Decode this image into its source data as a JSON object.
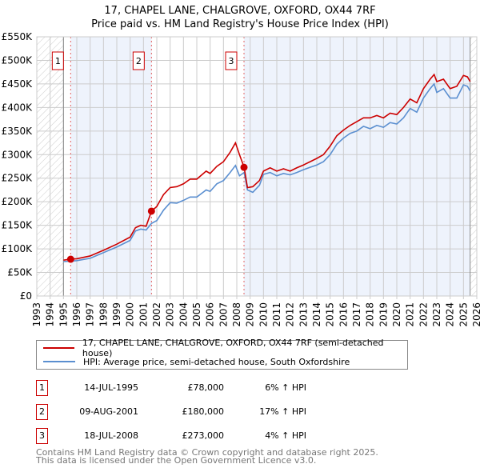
{
  "title": "17, CHAPEL LANE, CHALGROVE, OXFORD, OX44 7RF",
  "subtitle": "Price paid vs. HM Land Registry's House Price Index (HPI)",
  "chart_data": {
    "type": "line",
    "xlim": [
      1993,
      2026
    ],
    "ylim": [
      0,
      550000
    ],
    "yticks": [
      {
        "v": 0,
        "l": "£0"
      },
      {
        "v": 50000,
        "l": "£50K"
      },
      {
        "v": 100000,
        "l": "£100K"
      },
      {
        "v": 150000,
        "l": "£150K"
      },
      {
        "v": 200000,
        "l": "£200K"
      },
      {
        "v": 250000,
        "l": "£250K"
      },
      {
        "v": 300000,
        "l": "£300K"
      },
      {
        "v": 350000,
        "l": "£350K"
      },
      {
        "v": 400000,
        "l": "£400K"
      },
      {
        "v": 450000,
        "l": "£450K"
      },
      {
        "v": 500000,
        "l": "£500K"
      },
      {
        "v": 550000,
        "l": "£550K"
      }
    ],
    "xticks": [
      "1993",
      "1994",
      "1995",
      "1996",
      "1997",
      "1998",
      "1999",
      "2000",
      "2001",
      "2002",
      "2003",
      "2004",
      "2005",
      "2006",
      "2007",
      "2008",
      "2009",
      "2010",
      "2011",
      "2012",
      "2013",
      "2014",
      "2015",
      "2016",
      "2017",
      "2018",
      "2019",
      "2020",
      "2021",
      "2022",
      "2023",
      "2024",
      "2025",
      "2026"
    ],
    "data_start": 1995.0,
    "data_end": 2025.5,
    "series": [
      {
        "name": "17, CHAPEL LANE, CHALGROVE, OXFORD, OX44 7RF (semi-detached house)",
        "color": "#cc0000",
        "x": [
          1995.0,
          1995.5,
          1996,
          1997,
          1998,
          1999,
          2000,
          2000.4,
          2000.8,
          2001.2,
          2001.6,
          2002,
          2002.5,
          2003,
          2003.5,
          2004,
          2004.5,
          2005,
          2005.7,
          2006,
          2006.5,
          2007,
          2007.5,
          2007.9,
          2008.2,
          2008.55,
          2008.8,
          2009.2,
          2009.7,
          2010,
          2010.5,
          2011,
          2011.5,
          2012,
          2012.5,
          2013,
          2013.5,
          2014,
          2014.5,
          2015,
          2015.5,
          2016,
          2016.5,
          2017,
          2017.5,
          2018,
          2018.5,
          2019,
          2019.5,
          2020,
          2020.5,
          2021,
          2021.5,
          2022,
          2022.5,
          2022.8,
          2023,
          2023.5,
          2024,
          2024.5,
          2025,
          2025.3,
          2025.5
        ],
        "y": [
          76000,
          78000,
          79000,
          85000,
          97000,
          110000,
          125000,
          145000,
          150000,
          148000,
          180000,
          190000,
          215000,
          230000,
          232000,
          238000,
          248000,
          248000,
          265000,
          260000,
          275000,
          285000,
          305000,
          325000,
          300000,
          273000,
          230000,
          232000,
          245000,
          265000,
          272000,
          265000,
          270000,
          265000,
          272000,
          278000,
          285000,
          292000,
          300000,
          318000,
          340000,
          352000,
          362000,
          370000,
          378000,
          378000,
          383000,
          378000,
          388000,
          385000,
          400000,
          418000,
          410000,
          440000,
          460000,
          470000,
          455000,
          460000,
          440000,
          445000,
          468000,
          465000,
          455000
        ]
      },
      {
        "name": "HPI: Average price, semi-detached house, South Oxfordshire",
        "color": "#5b8fd0",
        "x": [
          1995.0,
          1995.5,
          1996,
          1997,
          1998,
          1999,
          2000,
          2000.4,
          2000.8,
          2001.2,
          2001.6,
          2002,
          2002.5,
          2003,
          2003.5,
          2004,
          2004.5,
          2005,
          2005.7,
          2006,
          2006.5,
          2007,
          2007.5,
          2007.9,
          2008.2,
          2008.55,
          2008.8,
          2009.2,
          2009.7,
          2010,
          2010.5,
          2011,
          2011.5,
          2012,
          2012.5,
          2013,
          2013.5,
          2014,
          2014.5,
          2015,
          2015.5,
          2016,
          2016.5,
          2017,
          2017.5,
          2018,
          2018.5,
          2019,
          2019.5,
          2020,
          2020.5,
          2021,
          2021.5,
          2022,
          2022.5,
          2022.8,
          2023,
          2023.5,
          2024,
          2024.5,
          2025,
          2025.3,
          2025.5
        ],
        "y": [
          73000,
          74000,
          75000,
          80000,
          92000,
          104000,
          118000,
          138000,
          142000,
          140000,
          154000,
          160000,
          182000,
          198000,
          197000,
          203000,
          210000,
          210000,
          225000,
          222000,
          238000,
          245000,
          262000,
          277000,
          255000,
          262000,
          225000,
          220000,
          235000,
          258000,
          262000,
          255000,
          260000,
          257000,
          262000,
          268000,
          273000,
          278000,
          285000,
          300000,
          322000,
          335000,
          345000,
          350000,
          360000,
          355000,
          362000,
          358000,
          368000,
          365000,
          378000,
          398000,
          390000,
          420000,
          440000,
          450000,
          432000,
          440000,
          420000,
          420000,
          448000,
          445000,
          435000
        ]
      }
    ],
    "sales": [
      {
        "label": "1",
        "x": 1995.54,
        "y": 78000
      },
      {
        "label": "2",
        "x": 2001.6,
        "y": 180000
      },
      {
        "label": "3",
        "x": 2008.54,
        "y": 273000
      }
    ]
  },
  "legend": {
    "property": "17, CHAPEL LANE, CHALGROVE, OXFORD, OX44 7RF (semi-detached house)",
    "hpi": "HPI: Average price, semi-detached house, South Oxfordshire"
  },
  "transactions": [
    {
      "num": "1",
      "date": "14-JUL-1995",
      "price": "£78,000",
      "hpi": "6% ↑ HPI"
    },
    {
      "num": "2",
      "date": "09-AUG-2001",
      "price": "£180,000",
      "hpi": "17% ↑ HPI"
    },
    {
      "num": "3",
      "date": "18-JUL-2008",
      "price": "£273,000",
      "hpi": "4% ↑ HPI"
    }
  ],
  "footer": [
    "Contains HM Land Registry data © Crown copyright and database right 2025.",
    "This data is licensed under the Open Government Licence v3.0."
  ]
}
